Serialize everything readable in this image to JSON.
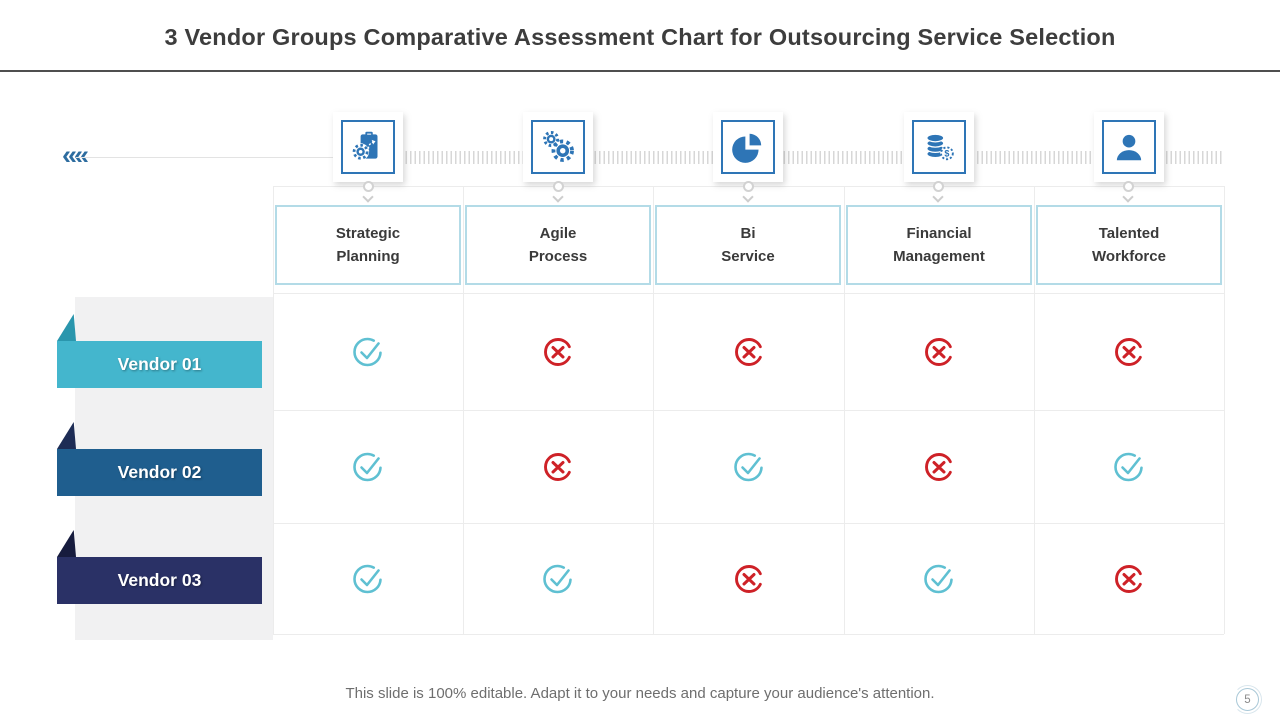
{
  "slide": {
    "title": "3 Vendor Groups Comparative Assessment Chart for Outsourcing Service Selection",
    "footer_note": "This slide is 100% editable. Adapt it to your needs and capture your audience's attention.",
    "page_number": "5"
  },
  "timeline": {
    "chevrons_icon": "‹‹‹‹",
    "icon_names": [
      "clipboard-strategy-icon",
      "gears-icon",
      "pie-chart-icon",
      "coins-gear-icon",
      "person-icon"
    ]
  },
  "chart_data": {
    "type": "table",
    "title": "3 Vendor Groups Comparative Assessment Chart for Outsourcing Service Selection",
    "columns": [
      "Strategic\nPlanning",
      "Agile\nProcess",
      "Bi\nService",
      "Financial\nManagement",
      "Talented\nWorkforce"
    ],
    "rows": [
      {
        "label": "Vendor 01",
        "values": [
          "check",
          "cross",
          "cross",
          "cross",
          "cross"
        ]
      },
      {
        "label": "Vendor 02",
        "values": [
          "check",
          "cross",
          "check",
          "cross",
          "check"
        ]
      },
      {
        "label": "Vendor 03",
        "values": [
          "check",
          "check",
          "cross",
          "check",
          "cross"
        ]
      }
    ]
  },
  "colors": {
    "accent_blue": "#2e75b6",
    "check": "#5fc0d2",
    "cross": "#ce2127",
    "vendor_01": "#44b6cd",
    "vendor_02": "#1f5e8e",
    "vendor_03": "#2a3166",
    "header_border": "#b3dbe7",
    "grid_line": "#ececec"
  }
}
